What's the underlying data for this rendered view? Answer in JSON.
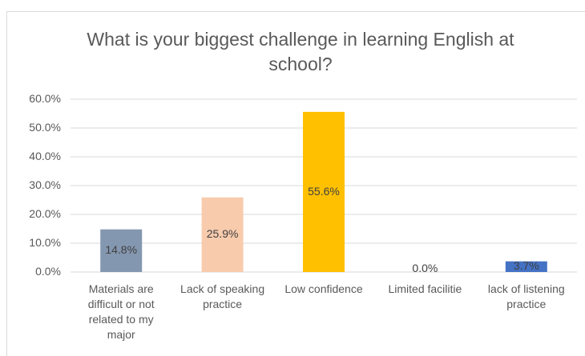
{
  "chart_data": {
    "type": "bar",
    "title": "What is your biggest challenge in learning English at school?",
    "categories": [
      "Materials are difficult or not related to my major",
      "Lack of speaking practice",
      "Low confidence",
      "Limited facilitie",
      "lack of listening practice"
    ],
    "values": [
      14.8,
      25.9,
      55.6,
      0.0,
      3.7
    ],
    "value_labels": [
      "14.8%",
      "25.9%",
      "55.6%",
      "0.0%",
      "3.7%"
    ],
    "colors": [
      "#8497b0",
      "#f8cbad",
      "#ffc000",
      null,
      "#4472c4"
    ],
    "ylim": [
      0,
      60
    ],
    "yticks": [
      {
        "value": 0,
        "label": "0.0%"
      },
      {
        "value": 10,
        "label": "10.0%"
      },
      {
        "value": 20,
        "label": "20.0%"
      },
      {
        "value": 30,
        "label": "30.0%"
      },
      {
        "value": 40,
        "label": "40.0%"
      },
      {
        "value": 50,
        "label": "50.0%"
      },
      {
        "value": 60,
        "label": "60.0%"
      }
    ],
    "grid": true
  }
}
